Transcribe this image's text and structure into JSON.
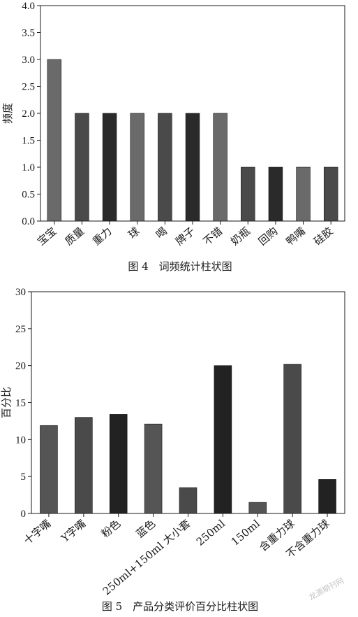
{
  "chart_data": [
    {
      "type": "bar",
      "title": "图 4　词频统计柱状图",
      "ylabel": "频度",
      "xlabel": "",
      "ylim": [
        0,
        4.0
      ],
      "yticks": [
        "0.0",
        "0.5",
        "1.0",
        "1.5",
        "2.0",
        "2.5",
        "3.0",
        "3.5",
        "4.0"
      ],
      "grid": false,
      "categories": [
        "宝宝",
        "质量",
        "重力",
        "球",
        "喝",
        "牌子",
        "不错",
        "奶瓶",
        "回购",
        "鸭嘴",
        "硅胶"
      ],
      "values": [
        3.0,
        2.0,
        2.0,
        2.0,
        2.0,
        2.0,
        2.0,
        1.0,
        1.0,
        1.0,
        1.0
      ],
      "bar_colors": [
        "#6a6a6a",
        "#4a4a4a",
        "#2a2a2a",
        "#6a6a6a",
        "#4a4a4a",
        "#2a2a2a",
        "#6a6a6a",
        "#4a4a4a",
        "#2a2a2a",
        "#6a6a6a",
        "#4a4a4a"
      ]
    },
    {
      "type": "bar",
      "title": "图 5　产品分类评价百分比柱状图",
      "ylabel": "百分比",
      "xlabel": "",
      "ylim": [
        0,
        30
      ],
      "yticks": [
        "0",
        "5",
        "10",
        "15",
        "20",
        "25",
        "30"
      ],
      "grid": false,
      "categories": [
        "十字嘴",
        "Y字嘴",
        "粉色",
        "蓝色",
        "250ml+150ml 大小套",
        "250ml",
        "150ml",
        "含重力球",
        "不含重力球"
      ],
      "values": [
        11.9,
        13.0,
        13.4,
        12.1,
        3.5,
        20.0,
        1.5,
        20.2,
        4.6
      ],
      "bar_colors": [
        "#555555",
        "#4a4a4a",
        "#222222",
        "#555555",
        "#4a4a4a",
        "#222222",
        "#555555",
        "#4a4a4a",
        "#222222"
      ]
    }
  ],
  "watermark": "龙源期刊网"
}
